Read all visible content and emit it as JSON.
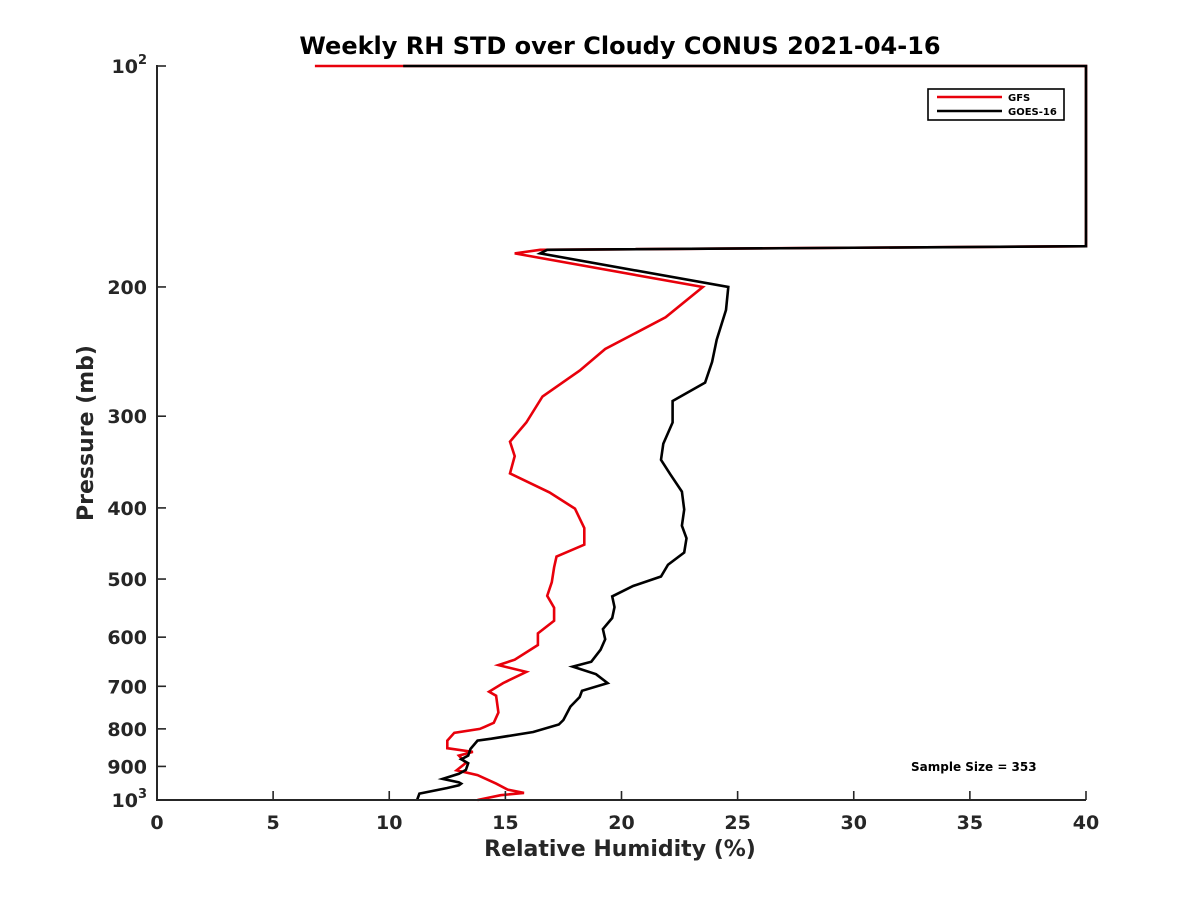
{
  "chart_data": {
    "type": "line",
    "title": "Weekly RH STD over Cloudy CONUS 2021-04-16",
    "xlabel": "Relative Humidity (%)",
    "ylabel": "Pressure (mb)",
    "xlim": [
      0,
      40
    ],
    "ylim": [
      100,
      1000
    ],
    "y_scale": "log",
    "y_reversed": true,
    "x_ticks": [
      "0",
      "5",
      "10",
      "15",
      "20",
      "25",
      "30",
      "35",
      "40"
    ],
    "y_ticks": [
      {
        "value": 100,
        "base": "10",
        "exp": "2"
      },
      {
        "value": 200,
        "label": "200"
      },
      {
        "value": 300,
        "label": "300"
      },
      {
        "value": 400,
        "label": "400"
      },
      {
        "value": 500,
        "label": "500"
      },
      {
        "value": 600,
        "label": "600"
      },
      {
        "value": 700,
        "label": "700"
      },
      {
        "value": 800,
        "label": "800"
      },
      {
        "value": 900,
        "label": "900"
      },
      {
        "value": 1000,
        "base": "10",
        "exp": "3"
      }
    ],
    "legend_position": "top-right",
    "grid": false,
    "annotation": "Sample Size = 353",
    "series": [
      {
        "name": "GFS",
        "color": "#e8000b",
        "points": [
          [
            6.8,
            100
          ],
          [
            10.6,
            100
          ],
          [
            40,
            100
          ],
          [
            40,
            176
          ],
          [
            16.5,
            178
          ],
          [
            15.4,
            180
          ],
          [
            23.5,
            200
          ],
          [
            21.9,
            220
          ],
          [
            19.3,
            243
          ],
          [
            18.2,
            260
          ],
          [
            16.6,
            282
          ],
          [
            15.9,
            306
          ],
          [
            15.2,
            325
          ],
          [
            15.4,
            340
          ],
          [
            15.2,
            359
          ],
          [
            16.9,
            381
          ],
          [
            18,
            401
          ],
          [
            18.4,
            426
          ],
          [
            18.4,
            449
          ],
          [
            17.2,
            466
          ],
          [
            17.1,
            482
          ],
          [
            17,
            505
          ],
          [
            16.8,
            527
          ],
          [
            17.1,
            547
          ],
          [
            17.1,
            570
          ],
          [
            16.4,
            593
          ],
          [
            16.4,
            615
          ],
          [
            15.4,
            644
          ],
          [
            14.7,
            655
          ],
          [
            15.9,
            669
          ],
          [
            14.9,
            693
          ],
          [
            14.3,
            712
          ],
          [
            14.6,
            721
          ],
          [
            14.7,
            760
          ],
          [
            14.5,
            785
          ],
          [
            14.1,
            795
          ],
          [
            13.9,
            800
          ],
          [
            12.8,
            810
          ],
          [
            12.5,
            830
          ],
          [
            12.5,
            850
          ],
          [
            13.6,
            860
          ],
          [
            13.0,
            870
          ],
          [
            13.3,
            890
          ],
          [
            12.9,
            911
          ],
          [
            13.8,
            925
          ],
          [
            14.6,
            950
          ],
          [
            15.1,
            968
          ],
          [
            15.8,
            978
          ],
          [
            14.8,
            985
          ],
          [
            13.8,
            1000
          ]
        ]
      },
      {
        "name": "GOES-16",
        "color": "#000000",
        "points": [
          [
            10.6,
            100
          ],
          [
            40,
            100
          ],
          [
            40,
            176
          ],
          [
            16.8,
            178
          ],
          [
            16.5,
            180
          ],
          [
            24.6,
            200
          ],
          [
            24.5,
            215
          ],
          [
            24.1,
            236
          ],
          [
            23.9,
            253
          ],
          [
            23.6,
            270
          ],
          [
            22.2,
            286
          ],
          [
            22.2,
            306
          ],
          [
            21.8,
            327
          ],
          [
            21.7,
            344
          ],
          [
            22.1,
            360
          ],
          [
            22.6,
            380
          ],
          [
            22.7,
            402
          ],
          [
            22.6,
            423
          ],
          [
            22.8,
            440
          ],
          [
            22.7,
            460
          ],
          [
            22,
            478
          ],
          [
            21.7,
            496
          ],
          [
            20.5,
            511
          ],
          [
            19.6,
            528
          ],
          [
            19.7,
            546
          ],
          [
            19.6,
            565
          ],
          [
            19.2,
            585
          ],
          [
            19.3,
            604
          ],
          [
            19.1,
            624
          ],
          [
            18.7,
            648
          ],
          [
            17.9,
            658
          ],
          [
            18.9,
            674
          ],
          [
            19.4,
            693
          ],
          [
            18.3,
            710
          ],
          [
            18.2,
            724
          ],
          [
            17.8,
            746
          ],
          [
            17.5,
            778
          ],
          [
            17.3,
            789
          ],
          [
            16.2,
            808
          ],
          [
            14.4,
            825
          ],
          [
            13.8,
            830
          ],
          [
            13.5,
            852
          ],
          [
            13.4,
            870
          ],
          [
            13.1,
            880
          ],
          [
            13.4,
            891
          ],
          [
            13.3,
            910
          ],
          [
            13.0,
            921
          ],
          [
            12.3,
            936
          ],
          [
            13.0,
            946
          ],
          [
            13.1,
            950
          ],
          [
            13.0,
            955
          ],
          [
            12.5,
            963
          ],
          [
            11.3,
            980
          ],
          [
            11.2,
            1000
          ]
        ]
      }
    ]
  }
}
